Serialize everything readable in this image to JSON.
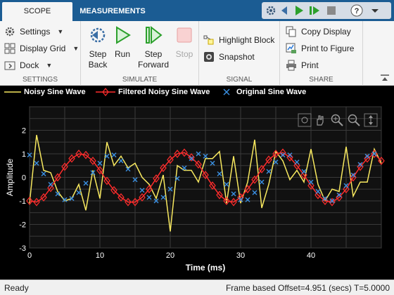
{
  "tabs": [
    {
      "label": "SCOPE",
      "active": true
    },
    {
      "label": "MEASUREMENTS",
      "active": false
    }
  ],
  "quick_access": [
    "settings-icon",
    "step-back-icon",
    "run-icon",
    "step-forward-icon",
    "stop-icon",
    "help-icon",
    "collapse-icon"
  ],
  "toolstrip": {
    "settings_section": {
      "title": "SETTINGS",
      "settings_label": "Settings",
      "display_grid_label": "Display Grid",
      "dock_label": "Dock"
    },
    "simulate_section": {
      "title": "SIMULATE",
      "step_back_line1": "Step",
      "step_back_line2": "Back",
      "run_label": "Run",
      "step_forward_line1": "Step",
      "step_forward_line2": "Forward",
      "stop_label": "Stop"
    },
    "signal_section": {
      "title": "SIGNAL",
      "highlight_block_label": "Highlight Block",
      "snapshot_label": "Snapshot"
    },
    "share_section": {
      "title": "SHARE",
      "copy_display_label": "Copy Display",
      "print_to_figure_label": "Print to Figure",
      "print_label": "Print"
    }
  },
  "colors": {
    "tab_bar": "#1b5c93",
    "noisy": "#f7e85f",
    "filtered": "#ff2c2c",
    "original": "#3a8fe0",
    "plot_bg": "#111111"
  },
  "chart_data": {
    "type": "line",
    "xlabel": "Time (ms)",
    "ylabel": "Amplitude",
    "xlim": [
      0,
      50
    ],
    "ylim": [
      -3,
      3
    ],
    "x_ticks": [
      "0",
      "10",
      "20",
      "30",
      "40"
    ],
    "y_ticks": [
      "-3",
      "-2",
      "-1",
      "0",
      "1",
      "2"
    ],
    "grid": true,
    "legend_position": "top",
    "series": [
      {
        "name": "Noisy Sine Wave",
        "style": "line",
        "x": [
          0,
          1,
          2,
          3,
          4,
          5,
          6,
          7,
          8,
          9,
          10,
          11,
          12,
          13,
          14,
          15,
          16,
          17,
          18,
          19,
          20,
          21,
          22,
          23,
          24,
          25,
          26,
          27,
          28,
          29,
          30,
          31,
          32,
          33,
          34,
          35,
          36,
          37,
          38,
          39,
          40,
          41,
          42,
          43,
          44,
          45,
          46,
          47,
          48,
          49,
          50
        ],
        "y": [
          -1.1,
          1.8,
          0.3,
          0.2,
          -0.6,
          -1.0,
          -0.9,
          -0.3,
          -1.4,
          0.3,
          -0.9,
          1.5,
          0.5,
          0.9,
          0.4,
          0.6,
          0.0,
          -0.3,
          -0.9,
          0.1,
          -2.3,
          0.5,
          0.3,
          0.3,
          -0.2,
          0.8,
          0.8,
          1.1,
          -1.1,
          0.9,
          -1.1,
          -0.2,
          1.6,
          -1.3,
          -0.3,
          1.1,
          0.7,
          -0.1,
          0.3,
          -0.2,
          1.2,
          -0.3,
          -1.0,
          -0.5,
          -0.6,
          1.3,
          -0.8,
          -0.2,
          -0.2,
          1.2,
          0.6
        ]
      },
      {
        "name": "Filtered Noisy Sine Wave",
        "style": "line-diamond",
        "x": [
          0,
          1,
          2,
          3,
          4,
          5,
          6,
          7,
          8,
          9,
          10,
          11,
          12,
          13,
          14,
          15,
          16,
          17,
          18,
          19,
          20,
          21,
          22,
          23,
          24,
          25,
          26,
          27,
          28,
          29,
          30,
          31,
          32,
          33,
          34,
          35,
          36,
          37,
          38,
          39,
          40,
          41,
          42,
          43,
          44,
          45,
          46,
          47,
          48,
          49,
          50
        ],
        "y": [
          -1.0,
          -1.05,
          -0.85,
          -0.45,
          0.0,
          0.45,
          0.8,
          1.0,
          0.95,
          0.7,
          0.3,
          -0.15,
          -0.55,
          -0.85,
          -1.05,
          -1.05,
          -0.85,
          -0.5,
          -0.05,
          0.4,
          0.75,
          1.0,
          1.05,
          0.85,
          0.55,
          0.1,
          -0.35,
          -0.75,
          -1.0,
          -1.05,
          -0.85,
          -0.5,
          -0.1,
          0.35,
          0.75,
          1.0,
          1.05,
          0.85,
          0.5,
          0.1,
          -0.35,
          -0.75,
          -1.0,
          -1.05,
          -0.85,
          -0.5,
          0.0,
          0.45,
          0.8,
          1.0,
          0.7
        ]
      },
      {
        "name": "Original Sine Wave",
        "style": "marker-x",
        "x": [
          0,
          1,
          2,
          3,
          4,
          5,
          6,
          7,
          8,
          9,
          10,
          11,
          12,
          13,
          14,
          15,
          16,
          17,
          18,
          19,
          20,
          21,
          22,
          23,
          24,
          25,
          26,
          27,
          28,
          29,
          30,
          31,
          32,
          33,
          34,
          35,
          36,
          37,
          38,
          39,
          40,
          41,
          42,
          43,
          44,
          45,
          46,
          47,
          48,
          49
        ],
        "y": [
          0.95,
          0.6,
          0.15,
          -0.3,
          -0.7,
          -0.95,
          -0.9,
          -0.65,
          -0.25,
          0.2,
          0.6,
          0.9,
          0.95,
          0.7,
          0.35,
          -0.1,
          -0.55,
          -0.85,
          -1.0,
          -0.85,
          -0.5,
          -0.05,
          0.4,
          0.8,
          1.0,
          0.9,
          0.6,
          0.15,
          -0.3,
          -0.7,
          -0.95,
          -0.95,
          -0.65,
          -0.2,
          0.25,
          0.65,
          0.95,
          0.95,
          0.65,
          0.25,
          -0.2,
          -0.6,
          -0.9,
          -1.0,
          -0.75,
          -0.35,
          0.1,
          0.55,
          0.9,
          1.0
        ]
      }
    ]
  },
  "status": {
    "ready": "Ready",
    "frame_info": "Frame based  Offset=4.951 (secs)  T=5.0000"
  }
}
